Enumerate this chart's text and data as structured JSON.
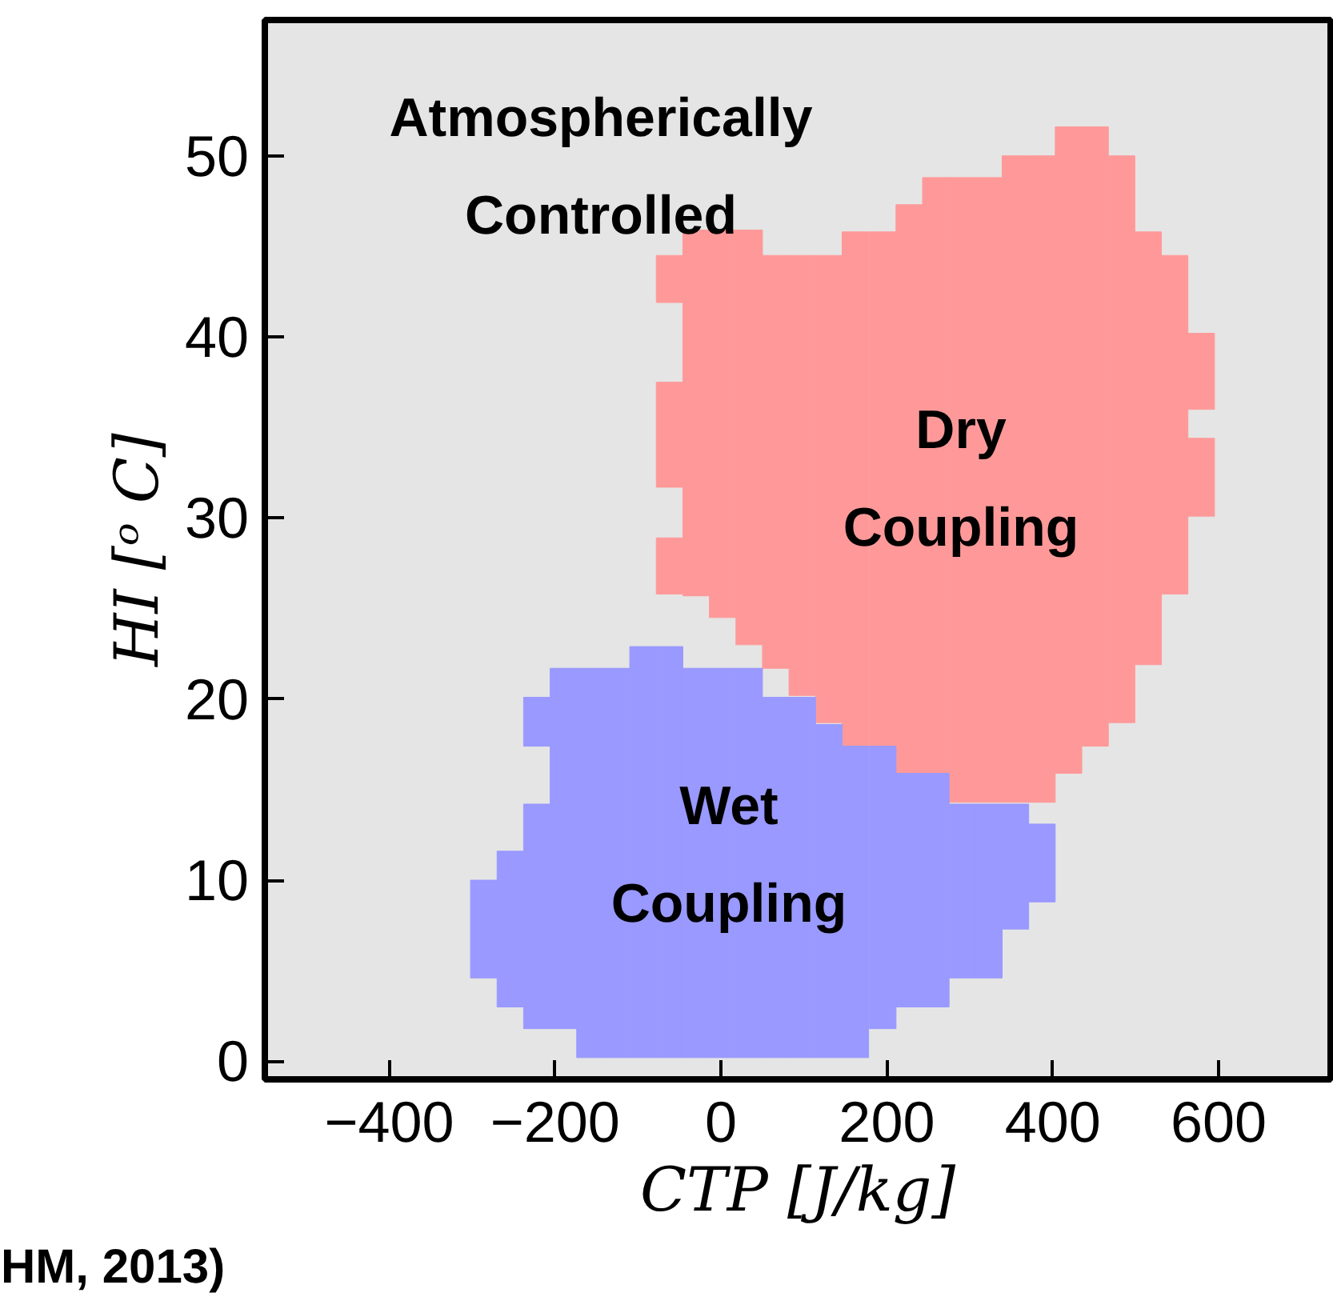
{
  "chart_data": {
    "type": "bar",
    "xlabel": "CTP [J/kg]",
    "ylabel": "HI [ᵒ C]",
    "xlim": [
      -550,
      735
    ],
    "ylim": [
      -1,
      57.5
    ],
    "xticks": [
      -400,
      -200,
      0,
      200,
      400,
      600
    ],
    "yticks": [
      0,
      10,
      20,
      30,
      40,
      50
    ],
    "grid": false,
    "series": [
      {
        "color": "#ff9999",
        "x": [
          -62,
          -30,
          2,
          34,
          66,
          98,
          130,
          162,
          195,
          227,
          259,
          291,
          323,
          355,
          387,
          419,
          451,
          483,
          515,
          547,
          579
        ],
        "base": [
          41.9,
          25.7,
          24.5,
          23.0,
          21.7,
          20.2,
          18.7,
          17.4,
          17.4,
          15.9,
          15.9,
          14.3,
          14.3,
          14.3,
          14.3,
          15.9,
          17.4,
          18.7,
          21.9,
          25.8,
          36.0
        ],
        "values": [
          2.6,
          20.2,
          21.4,
          22.9,
          22.8,
          24.3,
          25.8,
          28.4,
          28.4,
          31.4,
          32.9,
          34.5,
          34.5,
          35.7,
          35.7,
          35.7,
          34.2,
          31.3,
          23.9,
          18.7,
          4.2
        ]
      },
      {
        "color": "#ff9999",
        "x": [
          -62,
          579
        ],
        "base": [
          31.7,
          30.1
        ],
        "values": [
          5.8,
          4.3
        ]
      },
      {
        "color": "#ff9999",
        "x": [
          -62
        ],
        "base": [
          25.8
        ],
        "values": [
          3.1
        ]
      },
      {
        "color": "#9999ff",
        "x": [
          -286,
          -254,
          -222,
          -190,
          -158,
          -126,
          -94,
          -62,
          -30,
          2,
          34,
          66,
          98,
          130,
          162,
          195,
          227,
          259,
          291,
          323,
          355,
          387
        ],
        "base": [
          4.6,
          3.0,
          1.8,
          1.8,
          0.2,
          0.2,
          0.2,
          0.2,
          0.2,
          0.2,
          0.2,
          0.2,
          0.2,
          0.2,
          0.2,
          1.8,
          3.0,
          3.0,
          4.6,
          4.6,
          7.3,
          8.8
        ],
        "values": [
          5.4,
          8.6,
          12.4,
          19.9,
          21.5,
          21.5,
          22.7,
          22.7,
          21.5,
          21.5,
          21.5,
          19.9,
          19.9,
          18.4,
          17.2,
          15.6,
          12.9,
          12.9,
          9.6,
          9.6,
          6.9,
          4.3
        ]
      },
      {
        "color": "#9999ff",
        "x": [
          -222
        ],
        "base": [
          17.4
        ],
        "values": [
          2.7
        ]
      }
    ],
    "annotations": [
      "Atmospherically\nControlled",
      "Dry\nCoupling",
      "Wet\nCoupling",
      "HM, 2013)"
    ]
  }
}
